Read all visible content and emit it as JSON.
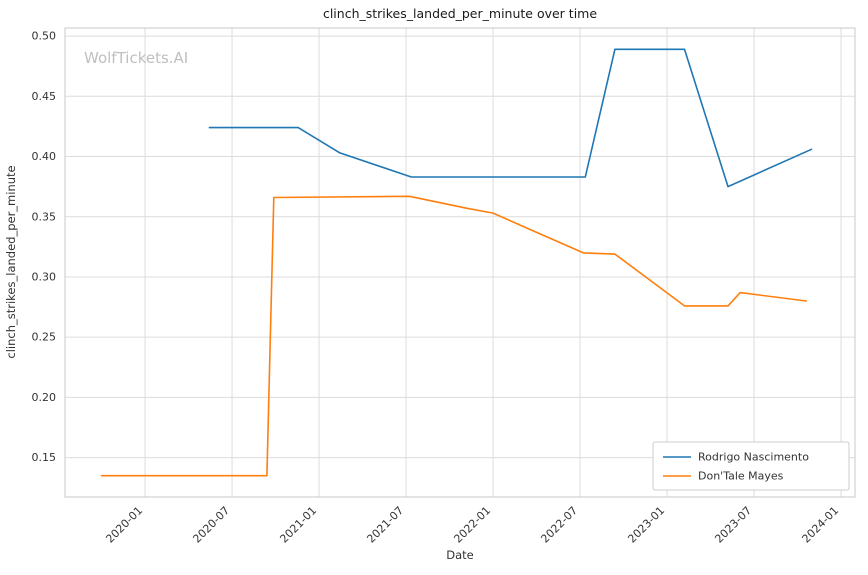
{
  "watermark": "WolfTickets.AI",
  "chart_data": {
    "type": "line",
    "title": "clinch_strikes_landed_per_minute over time",
    "xlabel": "Date",
    "ylabel": "clinch_strikes_landed_per_minute",
    "xlim": [
      2019.54,
      2024.08
    ],
    "ylim": [
      0.1173,
      0.5067
    ],
    "grid": true,
    "legend_position": "lower right",
    "grid_color": "#dcdcdc",
    "border_color": "#c9c9c9",
    "x_ticks": [
      {
        "label": "2020-01",
        "value": 2020.0
      },
      {
        "label": "2020-07",
        "value": 2020.5
      },
      {
        "label": "2021-01",
        "value": 2021.0
      },
      {
        "label": "2021-07",
        "value": 2021.5
      },
      {
        "label": "2022-01",
        "value": 2022.0
      },
      {
        "label": "2022-07",
        "value": 2022.5
      },
      {
        "label": "2023-01",
        "value": 2023.0
      },
      {
        "label": "2023-07",
        "value": 2023.5
      },
      {
        "label": "2024-01",
        "value": 2024.0
      }
    ],
    "y_ticks": [
      0.15,
      0.2,
      0.25,
      0.3,
      0.35,
      0.4,
      0.45,
      0.5
    ],
    "series": [
      {
        "name": "Rodrigo Nascimento",
        "color": "#1f77b4",
        "points": [
          [
            2020.37,
            0.424
          ],
          [
            2020.88,
            0.424
          ],
          [
            2021.12,
            0.403
          ],
          [
            2021.53,
            0.383
          ],
          [
            2022.53,
            0.383
          ],
          [
            2022.7,
            0.489
          ],
          [
            2023.1,
            0.489
          ],
          [
            2023.35,
            0.375
          ],
          [
            2023.83,
            0.406
          ]
        ]
      },
      {
        "name": "Don'Tale Mayes",
        "color": "#ff7f0e",
        "points": [
          [
            2019.75,
            0.135
          ],
          [
            2020.7,
            0.135
          ],
          [
            2020.74,
            0.366
          ],
          [
            2021.52,
            0.367
          ],
          [
            2021.85,
            0.357
          ],
          [
            2022.0,
            0.353
          ],
          [
            2022.25,
            0.337
          ],
          [
            2022.52,
            0.32
          ],
          [
            2022.7,
            0.319
          ],
          [
            2023.1,
            0.276
          ],
          [
            2023.35,
            0.276
          ],
          [
            2023.42,
            0.287
          ],
          [
            2023.8,
            0.28
          ]
        ]
      }
    ]
  }
}
